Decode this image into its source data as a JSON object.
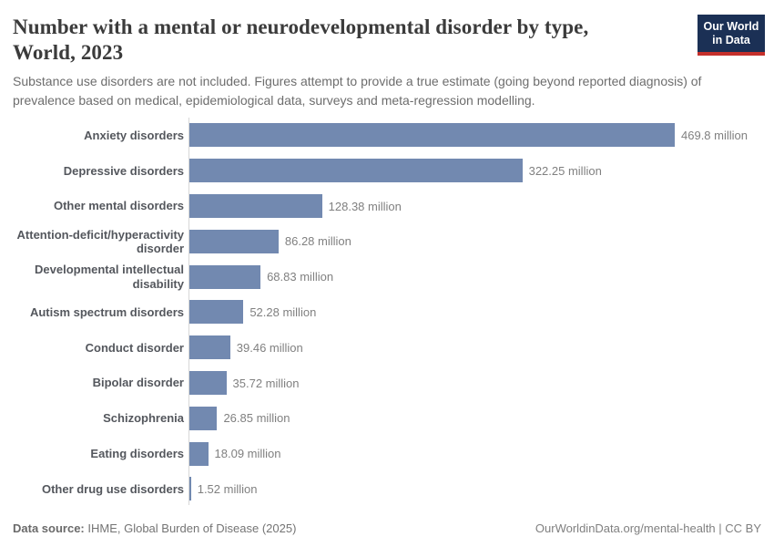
{
  "header": {
    "title": "Number with a mental or neurodevelopmental disorder by type,\nWorld, 2023",
    "subtitle": "Substance use disorders are not included. Figures attempt to provide a true estimate (going beyond reported diagnosis) of prevalence based on medical, epidemiological data, surveys and meta-regression modelling.",
    "logo": {
      "line1": "Our World",
      "line2": "in Data",
      "bg_color": "#1b3055",
      "accent_color": "#c5302b"
    }
  },
  "chart_data": {
    "type": "bar",
    "orientation": "horizontal",
    "title": "Number with a mental or neurodevelopmental disorder by type, World, 2023",
    "unit": "million people",
    "xlim": [
      0,
      469.8
    ],
    "grid": false,
    "legend": false,
    "bar_color": "#7289b0",
    "categories": [
      "Anxiety disorders",
      "Depressive disorders",
      "Other mental disorders",
      "Attention-deficit/hyperactivity\ndisorder",
      "Developmental intellectual\ndisability",
      "Autism spectrum disorders",
      "Conduct disorder",
      "Bipolar disorder",
      "Schizophrenia",
      "Eating disorders",
      "Other drug use disorders"
    ],
    "values": [
      469.8,
      322.25,
      128.38,
      86.28,
      68.83,
      52.28,
      39.46,
      35.72,
      26.85,
      18.09,
      1.52
    ],
    "value_labels": [
      "469.8 million",
      "322.25 million",
      "128.38 million",
      "86.28 million",
      "68.83 million",
      "52.28 million",
      "39.46 million",
      "35.72 million",
      "26.85 million",
      "18.09 million",
      "1.52 million"
    ]
  },
  "footer": {
    "source_label": "Data source:",
    "source_value": " IHME, Global Burden of Disease (2025)",
    "credit": "OurWorldinData.org/mental-health | CC BY"
  }
}
